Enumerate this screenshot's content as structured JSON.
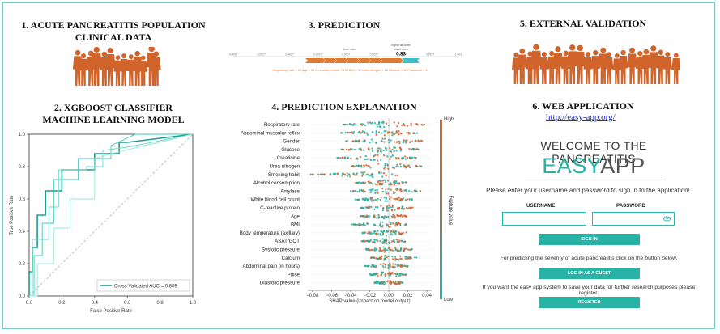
{
  "panels": {
    "p1_title": "1. ACUTE PANCREATITIS POPULATION",
    "p1_title2": "CLINICAL DATA",
    "p2_title": "2. XGBOOST CLASSIFIER",
    "p2_title2": "MACHINE LEARNING MODEL",
    "p3_title": "3. PREDICTION",
    "p4_title": "4. PREDICTION EXPLANATION",
    "p5_title": "5. EXTERNAL VALIDATION",
    "p6_title": "6. WEB APPLICATION",
    "p6_link": "http://easy-app.org/"
  },
  "force_plot": {
    "higher_lower": "higher ⇄ lower",
    "higher": "higher",
    "lower": "lower",
    "output_value_label": "output value",
    "output_value": "0.83",
    "base_value_label": "base value",
    "axis_ticks": [
      "0.0007",
      "0.0027",
      "0.4027",
      "0.1027",
      "0.3027",
      "0.5027",
      "0.7027",
      "0.9027",
      "1.001"
    ],
    "features_text": "Respiratory rate = 20   Age = 55   C-reactive protein = 150   BMI = 30   Urea nitrogen = 18   Glucose = 20   Potassium = 5"
  },
  "chart_data": [
    {
      "type": "line",
      "title": "",
      "xlabel": "False Positive Rate",
      "ylabel": "True Positive Rate",
      "xlim": [
        0,
        1
      ],
      "ylim": [
        0,
        1
      ],
      "x_ticks": [
        "0.0",
        "0.2",
        "0.4",
        "0.6",
        "0.8",
        "1.0"
      ],
      "y_ticks": [
        "0.0",
        "0.2",
        "0.4",
        "0.6",
        "0.8",
        "1.0"
      ],
      "legend": "Cross Validated AUC = 0.809",
      "legend_position": "bottom-right",
      "colors": [
        "#1b9e8f",
        "#3cc7b7",
        "#6fd8cc",
        "#9be5dc",
        "#bbb"
      ],
      "series": [
        {
          "name": "Cross Validated AUC = 0.809",
          "x": [
            0,
            0,
            0.02,
            0.02,
            0.05,
            0.05,
            0.1,
            0.1,
            0.2,
            0.2,
            0.4,
            0.4,
            0.55,
            0.55,
            0.6,
            1
          ],
          "y": [
            0,
            0.15,
            0.15,
            0.3,
            0.3,
            0.5,
            0.5,
            0.65,
            0.65,
            0.78,
            0.78,
            0.88,
            0.88,
            0.95,
            0.95,
            1
          ]
        },
        {
          "x": [
            0,
            0.03,
            0.03,
            0.08,
            0.08,
            0.15,
            0.15,
            0.3,
            0.3,
            0.5,
            0.5,
            0.65,
            1
          ],
          "y": [
            0,
            0,
            0.25,
            0.25,
            0.45,
            0.45,
            0.72,
            0.72,
            0.85,
            0.85,
            0.93,
            1,
            1
          ]
        },
        {
          "x": [
            0,
            0.02,
            0.02,
            0.12,
            0.12,
            0.18,
            0.18,
            0.35,
            0.35,
            0.45,
            0.45,
            0.6,
            1
          ],
          "y": [
            0,
            0,
            0.35,
            0.35,
            0.55,
            0.55,
            0.78,
            0.78,
            0.8,
            0.8,
            0.9,
            0.92,
            1
          ]
        },
        {
          "x": [
            0,
            0.05,
            0.05,
            0.15,
            0.15,
            0.25,
            0.25,
            0.4,
            0.4,
            0.5,
            1
          ],
          "y": [
            0,
            0,
            0.2,
            0.2,
            0.42,
            0.42,
            0.6,
            0.6,
            0.85,
            0.88,
            1
          ]
        },
        {
          "x": [
            0,
            1
          ],
          "y": [
            0,
            1
          ]
        }
      ]
    },
    {
      "type": "scatter",
      "title": "",
      "xlabel": "SHAP value (impact on model output)",
      "x_ticks": [
        "−0.08",
        "−0.06",
        "−0.04",
        "−0.02",
        "0.00",
        "0.02",
        "0.04"
      ],
      "xlim": [
        -0.085,
        0.045
      ],
      "colorbar_label": "Feature value",
      "colorbar_high": "High",
      "colorbar_low": "Low",
      "features": [
        "Respiratory rate",
        "Abdominal muscular reflex",
        "Gender",
        "Glucose",
        "Creatinine",
        "Urea nitrogen",
        "Smoking habit",
        "Alcohol consumption",
        "Amylase",
        "White blood cell count",
        "C-reactive protein",
        "Age",
        "BMI",
        "Body temperature (axillary)",
        "ASAT/GOT",
        "Systolic pressure",
        "Calcium",
        "Abdominal pain (in hours)",
        "Pulse",
        "Diastolic pressure"
      ],
      "spread": [
        [
          -0.048,
          0.038
        ],
        [
          -0.05,
          0.03
        ],
        [
          -0.045,
          0.035
        ],
        [
          -0.05,
          0.032
        ],
        [
          -0.055,
          0.03
        ],
        [
          -0.04,
          0.035
        ],
        [
          -0.082,
          0.01
        ],
        [
          -0.035,
          0.018
        ],
        [
          -0.04,
          0.034
        ],
        [
          -0.035,
          0.025
        ],
        [
          -0.03,
          0.025
        ],
        [
          -0.03,
          0.02
        ],
        [
          -0.04,
          0.02
        ],
        [
          -0.028,
          0.02
        ],
        [
          -0.03,
          0.018
        ],
        [
          -0.025,
          0.025
        ],
        [
          -0.02,
          0.03
        ],
        [
          -0.025,
          0.02
        ],
        [
          -0.02,
          0.018
        ],
        [
          -0.015,
          0.015
        ]
      ]
    }
  ],
  "web_app": {
    "welcome": "WELCOME TO THE PANCREATITIS",
    "easy": "EASY",
    "app": "APP",
    "instructions": "Please enter your username and password to sign in to the application!",
    "username_label": "USERNAME",
    "password_label": "PASSWORD",
    "sign_in": "SIGN IN",
    "guest_note": "For predicting the severity of acute pancreatitis click on the button below.",
    "guest": "LOG IN AS A GUEST",
    "register_note": "If you want the easy app system to save your data for further research purposes please register.",
    "register": "REGISTER"
  },
  "colors": {
    "accent": "#27b3a5",
    "frame": "#74c9c3",
    "crowd": "#d0642a",
    "force_red": "#e07a2e",
    "force_blue": "#3ac0c8",
    "high": "#d9622b",
    "low": "#21b2a6"
  }
}
